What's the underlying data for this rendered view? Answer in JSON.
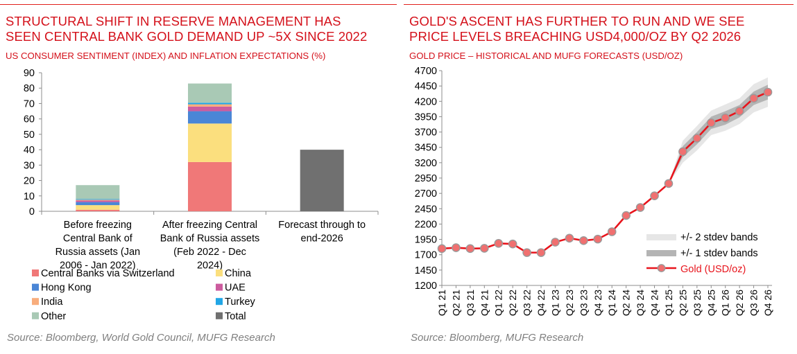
{
  "left": {
    "title_line1": "STRUCTURAL SHIFT IN RESERVE MANAGEMENT HAS",
    "title_line2": "SEEN CENTRAL BANK GOLD DEMAND UP ~5X SINCE 2022",
    "subtitle": "US CONSUMER SENTIMENT (INDEX) AND INFLATION EXPECTATIONS (%)",
    "source": "Source: Bloomberg, World Gold Council, MUFG Research"
  },
  "right": {
    "title_line1": "GOLD'S ASCENT HAS FURTHER TO RUN AND WE SEE",
    "title_line2": "PRICE LEVELS BREACHING USD4,000/OZ BY Q2 2026",
    "subtitle": "GOLD PRICE – HISTORICAL AND MUFG FORECASTS (USD/OZ)",
    "source": "Source: Bloomberg, MUFG Research"
  },
  "colors": {
    "brand_red": "#d4101a",
    "gold_line": "#e8141c",
    "gold_marker": "#f07070",
    "band_2sd": "#e6e6e6",
    "band_1sd": "#b4b4b4"
  },
  "chart_data": [
    {
      "type": "bar",
      "stacked": true,
      "categories": [
        [
          "Before freezing",
          "Central Bank of",
          "Russia assets (Jan",
          "2006 - Jan 2022)"
        ],
        [
          "After freezing Central",
          "Bank of Russia assets",
          "(Feb 2022 - Dec",
          "2024)"
        ],
        [
          "Forecast through to",
          "end-2026"
        ]
      ],
      "series": [
        {
          "name": "Central Banks via Switzerland",
          "color": "#f07878",
          "values": [
            1,
            32,
            null
          ]
        },
        {
          "name": "China",
          "color": "#fbdf7e",
          "values": [
            3,
            25,
            null
          ]
        },
        {
          "name": "Hong Kong",
          "color": "#4a86d6",
          "values": [
            2,
            8,
            null
          ]
        },
        {
          "name": "UAE",
          "color": "#cc5c9e",
          "values": [
            1,
            3,
            null
          ]
        },
        {
          "name": "India",
          "color": "#f8ad7c",
          "values": [
            0.5,
            1.5,
            null
          ]
        },
        {
          "name": "Turkey",
          "color": "#21a6e6",
          "values": [
            0.5,
            1,
            null
          ]
        },
        {
          "name": "Other",
          "color": "#a9c9b5",
          "values": [
            9,
            12.5,
            null
          ]
        },
        {
          "name": "Total",
          "color": "#707070",
          "values": [
            null,
            null,
            40
          ]
        }
      ],
      "ylim": [
        0,
        90
      ],
      "yticks": [
        0,
        10,
        20,
        30,
        40,
        50,
        60,
        70,
        80,
        90
      ],
      "legend_position": "bottom",
      "grid": false
    },
    {
      "type": "line",
      "x": [
        "Q1 21",
        "Q2 21",
        "Q3 21",
        "Q4 21",
        "Q1 22",
        "Q2 22",
        "Q3 22",
        "Q4 22",
        "Q1 23",
        "Q2 23",
        "Q3 23",
        "Q4 23",
        "Q1 24",
        "Q2 24",
        "Q3 24",
        "Q4 24",
        "Q1 25",
        "Q2 25",
        "Q3 25",
        "Q4 25",
        "Q1 26",
        "Q2 26",
        "Q3 26",
        "Q4 26"
      ],
      "series": [
        {
          "name": "Gold (USD/oz)",
          "values": [
            1800,
            1815,
            1800,
            1805,
            1885,
            1875,
            1735,
            1735,
            1905,
            1970,
            1930,
            1955,
            2075,
            2340,
            2470,
            2660,
            2860,
            3380,
            3600,
            3850,
            3930,
            4040,
            4250,
            4350
          ]
        }
      ],
      "band_2sd": {
        "name": "+/- 2 stdev bands",
        "start_index": 16,
        "upper": [
          2860,
          3560,
          3800,
          4050,
          4150,
          4250,
          4480,
          4590
        ],
        "lower": [
          2860,
          3200,
          3400,
          3650,
          3720,
          3830,
          4020,
          4110
        ]
      },
      "band_1sd": {
        "name": "+/- 1 stdev bands",
        "start_index": 16,
        "upper": [
          2860,
          3470,
          3700,
          3950,
          4040,
          4140,
          4360,
          4470
        ],
        "lower": [
          2860,
          3290,
          3500,
          3750,
          3820,
          3940,
          4140,
          4230
        ]
      },
      "ylim": [
        1200,
        4700
      ],
      "yticks": [
        1200,
        1450,
        1700,
        1950,
        2200,
        2450,
        2700,
        2950,
        3200,
        3450,
        3700,
        3950,
        4200,
        4450,
        4700
      ],
      "legend_position": "bottom-right",
      "grid": false
    }
  ]
}
